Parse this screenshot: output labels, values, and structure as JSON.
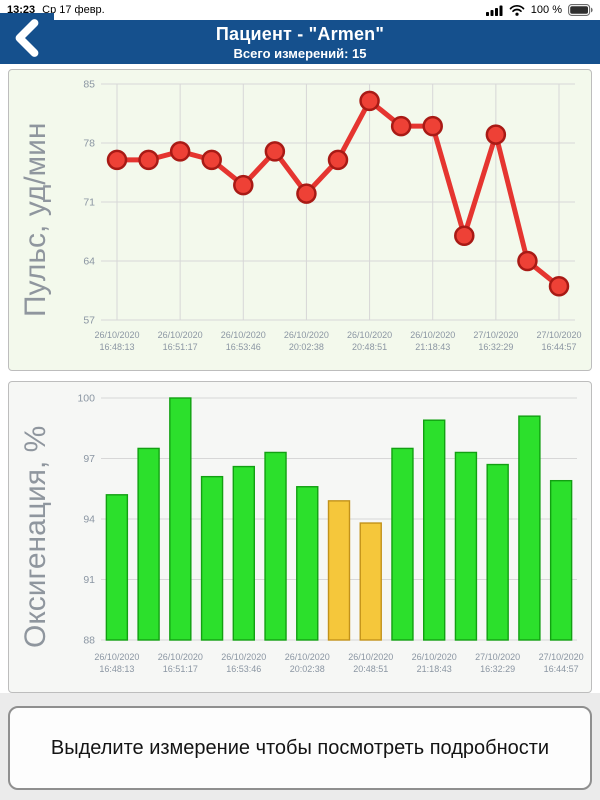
{
  "status_bar": {
    "time": "13:23",
    "date": "Ср 17 февр.",
    "battery_percent": "100 %",
    "icons": [
      "cellular-bars-icon",
      "wifi-icon",
      "battery-icon"
    ]
  },
  "nav": {
    "title": "Пациент - \"Armen\"",
    "subtitle": "Всего измерений: 15",
    "back_icon": "chevron-left-icon",
    "bar_color": "#15508d"
  },
  "chart_data": [
    {
      "type": "line",
      "title": "",
      "ylabel": "Пульс, уд/мин",
      "ylim": [
        57,
        85
      ],
      "yticks": [
        85,
        78,
        71,
        64,
        57
      ],
      "grid": true,
      "legend": false,
      "values": [
        76,
        76,
        77,
        76,
        73,
        77,
        72,
        76,
        83,
        80,
        80,
        67,
        79,
        64,
        61
      ],
      "label_indices": [
        0,
        2,
        4,
        6,
        8,
        10,
        12,
        14
      ],
      "x_labels": [
        [
          "26/10/2020",
          "16:48:13"
        ],
        [
          "26/10/2020",
          "16:51:17"
        ],
        [
          "26/10/2020",
          "16:53:46"
        ],
        [
          "26/10/2020",
          "20:02:38"
        ],
        [
          "26/10/2020",
          "20:48:51"
        ],
        [
          "26/10/2020",
          "21:18:43"
        ],
        [
          "27/10/2020",
          "16:32:29"
        ],
        [
          "27/10/2020",
          "16:44:57"
        ]
      ],
      "line_color": "#e53530",
      "marker_fill": "#ee4136",
      "marker_stroke": "#a81a15",
      "grid_color": "#d7d7d7",
      "tick_color": "#8b96a3",
      "bg_color": "#f3f9ec"
    },
    {
      "type": "bar",
      "title": "",
      "ylabel": "Оксигенация, %",
      "ylim": [
        88,
        100
      ],
      "yticks": [
        100,
        97,
        94,
        91,
        88
      ],
      "grid": true,
      "legend": false,
      "values": [
        95.2,
        97.5,
        100,
        96.1,
        96.6,
        97.3,
        95.6,
        94.9,
        93.8,
        97.5,
        98.9,
        97.3,
        96.7,
        99.1,
        95.9
      ],
      "colors": [
        "green",
        "green",
        "green",
        "green",
        "green",
        "green",
        "green",
        "yellow",
        "yellow",
        "green",
        "green",
        "green",
        "green",
        "green",
        "green"
      ],
      "palette": {
        "green": {
          "fill": "#2ce02c",
          "stroke": "#12a012"
        },
        "yellow": {
          "fill": "#f5c73b",
          "stroke": "#c2921a"
        }
      },
      "label_indices": [
        0,
        2,
        4,
        6,
        8,
        10,
        12,
        14
      ],
      "x_labels": [
        [
          "26/10/2020",
          "16:48:13"
        ],
        [
          "26/10/2020",
          "16:51:17"
        ],
        [
          "26/10/2020",
          "16:53:46"
        ],
        [
          "26/10/2020",
          "20:02:38"
        ],
        [
          "26/10/2020",
          "20:48:51"
        ],
        [
          "26/10/2020",
          "21:18:43"
        ],
        [
          "27/10/2020",
          "16:32:29"
        ],
        [
          "27/10/2020",
          "16:44:57"
        ]
      ],
      "grid_color": "#d7d7d7",
      "tick_color": "#8b96a3",
      "bg_color": "#f6f7f5"
    }
  ],
  "footer": {
    "message": "Выделите измерение чтобы посмотреть подробности"
  }
}
